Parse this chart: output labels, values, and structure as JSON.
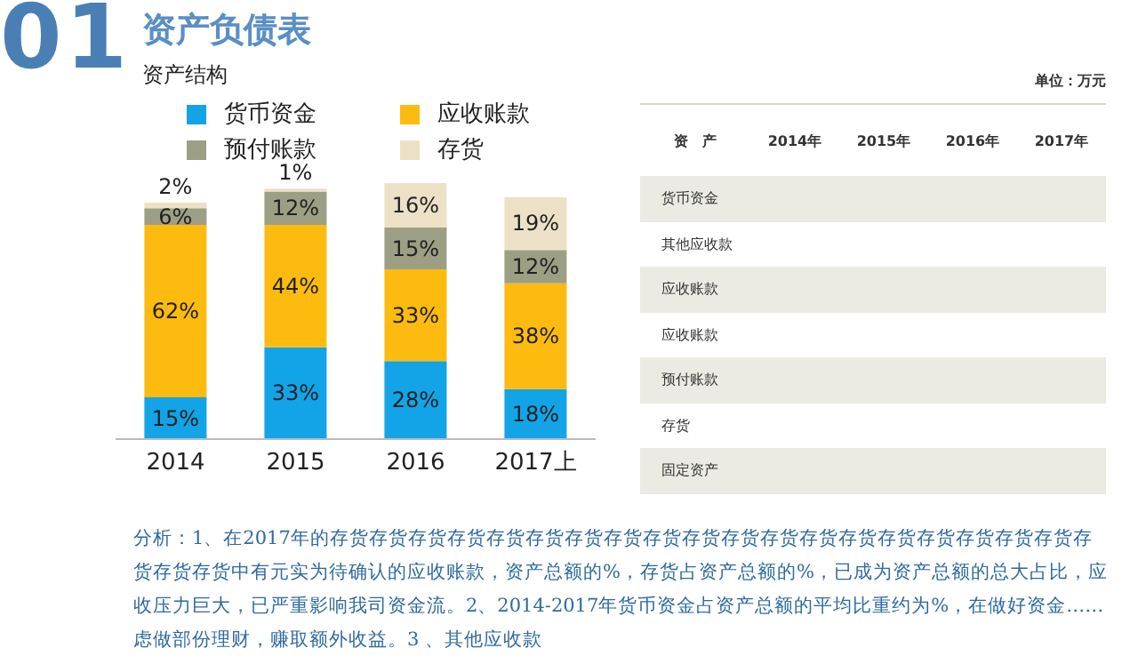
{
  "chart_data": [
    {
      "type": "bar",
      "title": "资产负债表",
      "subtitle": "资产结构",
      "stacked": true,
      "legend": "top",
      "categories": [
        "2014",
        "2015",
        "2016",
        "2017上"
      ],
      "series": [
        {
          "name": "货币资金",
          "color": "#12a4e6",
          "values": [
            15,
            33,
            28,
            18
          ],
          "value_labels": [
            "15%",
            "33%",
            "28%",
            "18%"
          ]
        },
        {
          "name": "应收账款",
          "color": "#fdbb0f",
          "values": [
            62,
            44,
            33,
            38
          ],
          "value_labels": [
            "62%",
            "44%",
            "33%",
            "38%"
          ]
        },
        {
          "name": "预付账款",
          "color": "#9c9f84",
          "values": [
            6,
            12,
            15,
            12
          ],
          "value_labels": [
            "6%",
            "12%",
            "15%",
            "12%"
          ]
        },
        {
          "name": "存货",
          "color": "#ece1c7",
          "values": [
            2,
            1,
            16,
            19
          ],
          "value_labels": [
            "2%",
            "1%",
            "16%",
            "19%"
          ]
        }
      ],
      "annotations": [
        "01",
        "分析：1、在2017年的存货存货存货存货存货存货存货存货存货存货存货存货存货存货存货存货存货存货存货存货存货存货中有元实为待确认的应收账款，资产总额的%，存货占资产总额的%，已成为资产总额的总大占比，应收压力巨大，已严重影响我司资金流。2、2014-2017年货币资金占资产总额的平均比重约为%，在做好资金……虑做部份理财，赚取额外收益。3 、其他应收款"
      ]
    },
    {
      "type": "heatmap",
      "subtitle": "单位：万元",
      "ylabel": "资　产",
      "categories": [
        "2014年",
        "2015年",
        "2016年",
        "2017年"
      ],
      "y_categories": [
        "货币资金",
        "其他应收款",
        "应收账款",
        "应收账款",
        "预付账款",
        "存货",
        "固定资产"
      ],
      "cells": [
        [
          null,
          null,
          null,
          null
        ],
        [
          null,
          null,
          null,
          null
        ],
        [
          null,
          null,
          null,
          null
        ],
        [
          null,
          null,
          null,
          null
        ],
        [
          null,
          null,
          null,
          null
        ],
        [
          null,
          null,
          null,
          null
        ],
        [
          null,
          null,
          null,
          null
        ]
      ]
    }
  ]
}
